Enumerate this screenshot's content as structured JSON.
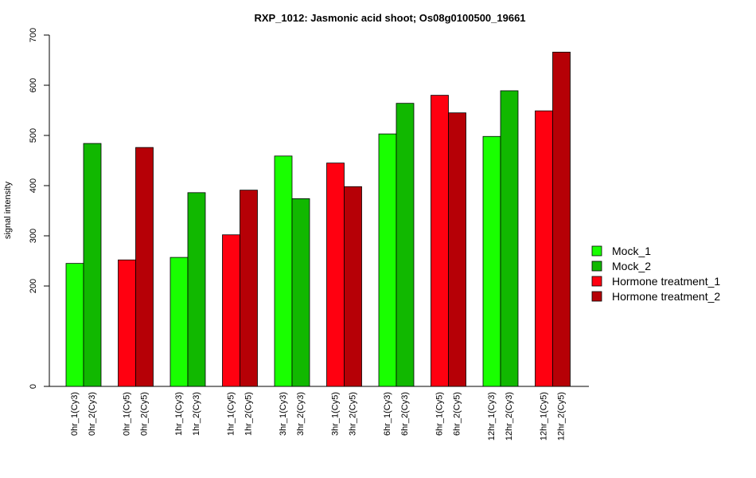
{
  "chart_data": {
    "type": "bar",
    "title": "RXP_1012: Jasmonic acid shoot; Os08g0100500_19661",
    "ylabel": "signal intensity",
    "xlabel": "",
    "ylim": [
      0,
      700
    ],
    "yticks": [
      0,
      200,
      300,
      400,
      500,
      600,
      700
    ],
    "grid": false,
    "legend_position": "right",
    "categories": [
      "0hr_1(Cy3)",
      "0hr_2(Cy3)",
      "0hr_1(Cy5)",
      "0hr_2(Cy5)",
      "1hr_1(Cy3)",
      "1hr_2(Cy3)",
      "1hr_1(Cy5)",
      "1hr_2(Cy5)",
      "3hr_1(Cy3)",
      "3hr_2(Cy3)",
      "3hr_1(Cy5)",
      "3hr_2(Cy5)",
      "6hr_1(Cy3)",
      "6hr_2(Cy3)",
      "6hr_1(Cy5)",
      "6hr_2(Cy5)",
      "12hr_1(Cy3)",
      "12hr_2(Cy3)",
      "12hr_1(Cy5)",
      "12hr_2(Cy5)"
    ],
    "values": [
      245,
      484,
      252,
      476,
      257,
      386,
      302,
      391,
      459,
      374,
      445,
      398,
      503,
      564,
      580,
      545,
      498,
      589,
      549,
      666
    ],
    "series_index": [
      0,
      1,
      2,
      3,
      0,
      1,
      2,
      3,
      0,
      1,
      2,
      3,
      0,
      1,
      2,
      3,
      0,
      1,
      2,
      3
    ],
    "series": [
      {
        "name": "Mock_1",
        "color": "#19ff00"
      },
      {
        "name": "Mock_2",
        "color": "#11b800"
      },
      {
        "name": "Hormone treatment_1",
        "color": "#ff0010"
      },
      {
        "name": "Hormone treatment_2",
        "color": "#b60006"
      }
    ]
  }
}
